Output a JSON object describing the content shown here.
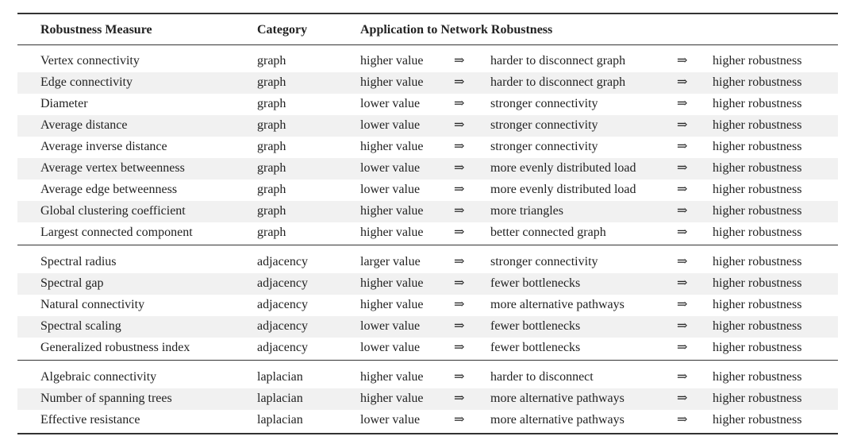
{
  "table": {
    "header": [
      "Robustness Measure",
      "Category",
      "Application to Network Robustness"
    ],
    "arrow": "⇒",
    "groups": [
      [
        [
          "Vertex connectivity",
          "graph",
          "higher value",
          "harder to disconnect graph",
          "higher robustness"
        ],
        [
          "Edge connectivity",
          "graph",
          "higher value",
          "harder to disconnect graph",
          "higher robustness"
        ],
        [
          "Diameter",
          "graph",
          "lower value",
          "stronger connectivity",
          "higher robustness"
        ],
        [
          "Average distance",
          "graph",
          "lower value",
          "stronger connectivity",
          "higher robustness"
        ],
        [
          "Average inverse distance",
          "graph",
          "higher value",
          "stronger connectivity",
          "higher robustness"
        ],
        [
          "Average vertex betweenness",
          "graph",
          "lower value",
          "more evenly distributed load",
          "higher robustness"
        ],
        [
          "Average edge betweenness",
          "graph",
          "lower value",
          "more evenly distributed load",
          "higher robustness"
        ],
        [
          "Global clustering coefficient",
          "graph",
          "higher value",
          "more triangles",
          "higher robustness"
        ],
        [
          "Largest connected component",
          "graph",
          "higher value",
          "better connected graph",
          "higher robustness"
        ]
      ],
      [
        [
          "Spectral radius",
          "adjacency",
          "larger value",
          "stronger connectivity",
          "higher robustness"
        ],
        [
          "Spectral gap",
          "adjacency",
          "higher value",
          "fewer bottlenecks",
          "higher robustness"
        ],
        [
          "Natural connectivity",
          "adjacency",
          "higher value",
          "more alternative pathways",
          "higher robustness"
        ],
        [
          "Spectral scaling",
          "adjacency",
          "lower value",
          "fewer bottlenecks",
          "higher robustness"
        ],
        [
          "Generalized robustness index",
          "adjacency",
          "lower value",
          "fewer bottlenecks",
          "higher robustness"
        ]
      ],
      [
        [
          "Algebraic connectivity",
          "laplacian",
          "higher value",
          "harder to disconnect",
          "higher robustness"
        ],
        [
          "Number of spanning trees",
          "laplacian",
          "higher value",
          "more alternative pathways",
          "higher robustness"
        ],
        [
          "Effective resistance",
          "laplacian",
          "lower value",
          "more alternative pathways",
          "higher robustness"
        ]
      ]
    ]
  }
}
